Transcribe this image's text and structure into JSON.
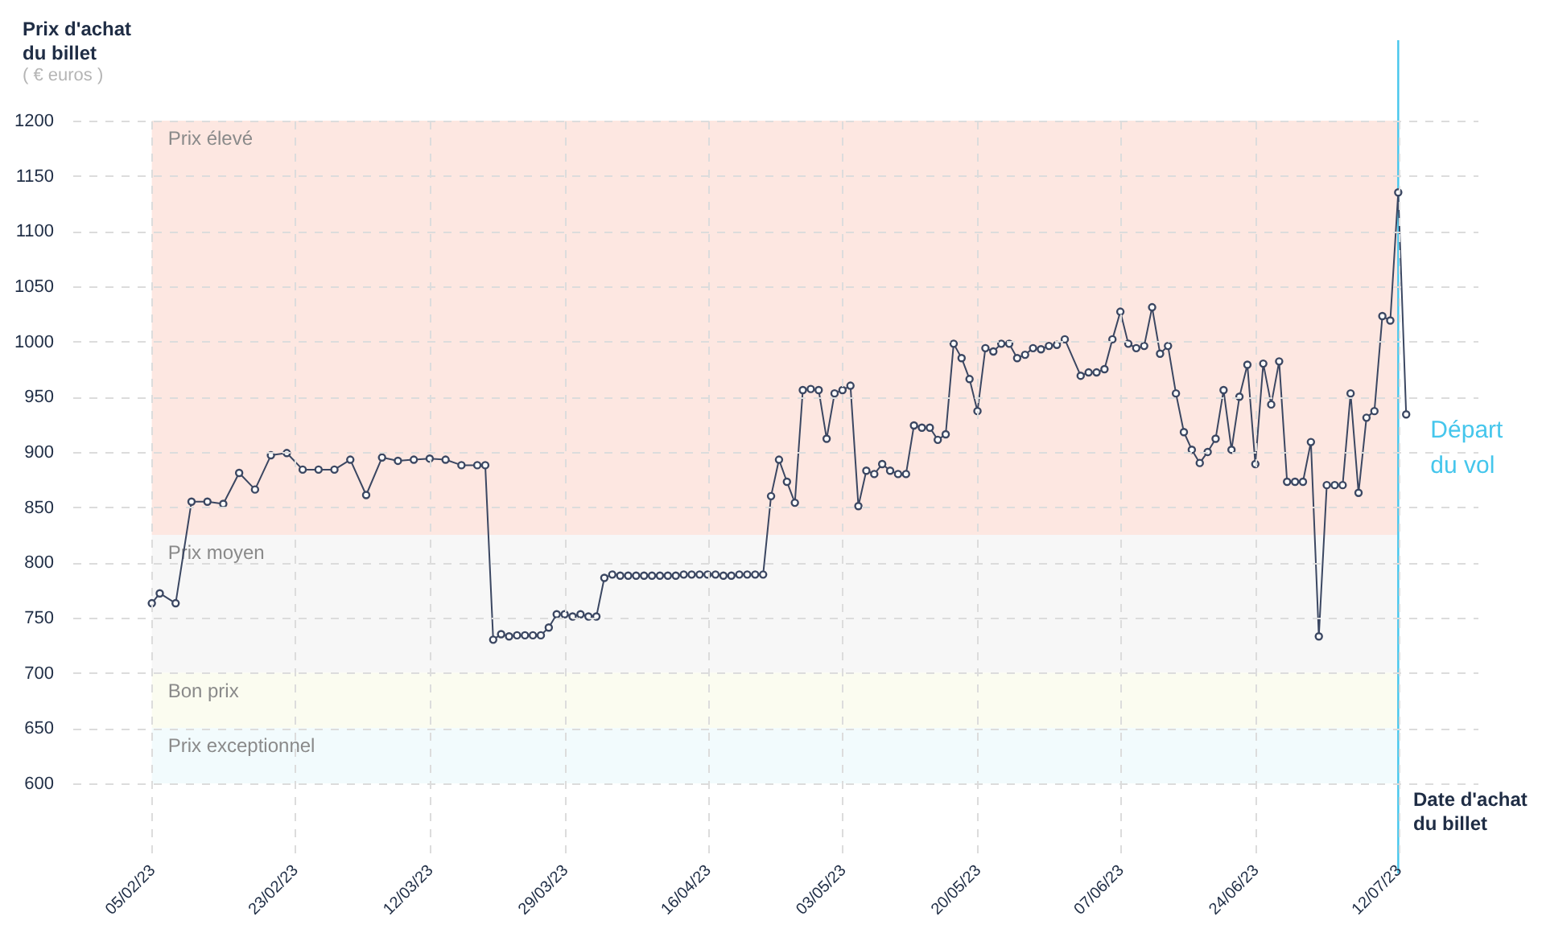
{
  "chart_data": {
    "type": "line",
    "ylabel": "Prix d'achat du billet",
    "xlabel": "Date d'achat du billet",
    "annotations": [
      "( € euros )"
    ],
    "x": [
      "2023-02-05",
      "2023-02-06",
      "2023-02-08",
      "2023-02-10",
      "2023-02-12",
      "2023-02-14",
      "2023-02-16",
      "2023-02-18",
      "2023-02-20",
      "2023-02-22",
      "2023-02-24",
      "2023-02-26",
      "2023-02-28",
      "2023-03-02",
      "2023-03-04",
      "2023-03-06",
      "2023-03-08",
      "2023-03-10",
      "2023-03-12",
      "2023-03-14",
      "2023-03-16",
      "2023-03-18",
      "2023-03-19",
      "2023-03-20",
      "2023-03-21",
      "2023-03-22",
      "2023-03-23",
      "2023-03-24",
      "2023-03-25",
      "2023-03-26",
      "2023-03-27",
      "2023-03-28",
      "2023-03-29",
      "2023-03-30",
      "2023-03-31",
      "2023-04-01",
      "2023-04-02",
      "2023-04-03",
      "2023-04-04",
      "2023-04-05",
      "2023-04-06",
      "2023-04-07",
      "2023-04-08",
      "2023-04-09",
      "2023-04-10",
      "2023-04-11",
      "2023-04-12",
      "2023-04-13",
      "2023-04-14",
      "2023-04-15",
      "2023-04-16",
      "2023-04-17",
      "2023-04-18",
      "2023-04-19",
      "2023-04-20",
      "2023-04-21",
      "2023-04-22",
      "2023-04-23",
      "2023-04-24",
      "2023-04-25",
      "2023-04-26",
      "2023-04-27",
      "2023-04-28",
      "2023-04-29",
      "2023-04-30",
      "2023-05-01",
      "2023-05-02",
      "2023-05-03",
      "2023-05-04",
      "2023-05-05",
      "2023-05-06",
      "2023-05-07",
      "2023-05-08",
      "2023-05-09",
      "2023-05-10",
      "2023-05-11",
      "2023-05-12",
      "2023-05-13",
      "2023-05-14",
      "2023-05-15",
      "2023-05-16",
      "2023-05-17",
      "2023-05-18",
      "2023-05-19",
      "2023-05-20",
      "2023-05-21",
      "2023-05-22",
      "2023-05-23",
      "2023-05-24",
      "2023-05-25",
      "2023-05-26",
      "2023-05-27",
      "2023-05-28",
      "2023-05-29",
      "2023-05-30",
      "2023-05-31",
      "2023-06-02",
      "2023-06-03",
      "2023-06-04",
      "2023-06-05",
      "2023-06-06",
      "2023-06-07",
      "2023-06-08",
      "2023-06-09",
      "2023-06-10",
      "2023-06-11",
      "2023-06-12",
      "2023-06-13",
      "2023-06-14",
      "2023-06-15",
      "2023-06-16",
      "2023-06-17",
      "2023-06-18",
      "2023-06-19",
      "2023-06-20",
      "2023-06-21",
      "2023-06-22",
      "2023-06-23",
      "2023-06-24",
      "2023-06-25",
      "2023-06-26",
      "2023-06-27",
      "2023-06-28",
      "2023-06-29",
      "2023-06-30",
      "2023-07-01",
      "2023-07-02",
      "2023-07-03",
      "2023-07-04",
      "2023-07-05",
      "2023-07-06",
      "2023-07-07",
      "2023-07-08",
      "2023-07-09",
      "2023-07-10",
      "2023-07-11",
      "2023-07-12",
      "2023-07-13"
    ],
    "series": [
      {
        "color": "#3b4762",
        "values": [
          763,
          772,
          763,
          855,
          855,
          853,
          881,
          866,
          897,
          899,
          884,
          884,
          884,
          893,
          861,
          895,
          892,
          893,
          894,
          893,
          888,
          888,
          888,
          730,
          735,
          733,
          734,
          734,
          734,
          734,
          741,
          753,
          753,
          751,
          753,
          751,
          751,
          786,
          789,
          788,
          788,
          788,
          788,
          788,
          788,
          788,
          788,
          789,
          789,
          789,
          789,
          789,
          788,
          788,
          789,
          789,
          789,
          789,
          860,
          893,
          873,
          854,
          956,
          957,
          956,
          912,
          953,
          956,
          960,
          851,
          883,
          880,
          889,
          883,
          880,
          880,
          924,
          922,
          922,
          911,
          916,
          998,
          985,
          966,
          937,
          994,
          991,
          998,
          998,
          985,
          988,
          994,
          993,
          996,
          997,
          1002,
          969,
          972,
          972,
          975,
          1002,
          1027,
          998,
          994,
          996,
          1031,
          989,
          996,
          953,
          918,
          902,
          890,
          900,
          912,
          956,
          902,
          950,
          979,
          889,
          980,
          943,
          982,
          873,
          873,
          873,
          909,
          733,
          870,
          870,
          870,
          953,
          863,
          931,
          937,
          1023,
          1019,
          1135,
          934
        ]
      }
    ],
    "xlim": [
      "2023-01-26",
      "2023-07-22"
    ],
    "xticks": [
      {
        "value": "2023-02-05",
        "label": "05/02/23"
      },
      {
        "value": "2023-02-23",
        "label": "23/02/23"
      },
      {
        "value": "2023-03-12",
        "label": "12/03/23"
      },
      {
        "value": "2023-03-29",
        "label": "29/03/23"
      },
      {
        "value": "2023-04-16",
        "label": "16/04/23"
      },
      {
        "value": "2023-05-03",
        "label": "03/05/23"
      },
      {
        "value": "2023-05-20",
        "label": "20/05/23"
      },
      {
        "value": "2023-06-07",
        "label": "07/06/23"
      },
      {
        "value": "2023-06-24",
        "label": "24/06/23"
      },
      {
        "value": "2023-07-12",
        "label": "12/07/23"
      }
    ],
    "ylim": [
      530,
      1200
    ],
    "yticks": [
      600,
      650,
      700,
      750,
      800,
      850,
      900,
      950,
      1000,
      1050,
      1100,
      1150,
      1200
    ],
    "grid": true,
    "marker": "circle",
    "line_style": "solid",
    "bands": [
      {
        "axis": "y",
        "from": 825,
        "to": 1200,
        "label": "Prix élevé",
        "color": "#fde7e1"
      },
      {
        "axis": "y",
        "from": 700,
        "to": 825,
        "label": "Prix moyen",
        "color": "#f7f7f7"
      },
      {
        "axis": "y",
        "from": 650,
        "to": 700,
        "label": "Bon prix",
        "color": "#fbfcf0"
      },
      {
        "axis": "y",
        "from": 600,
        "to": 650,
        "label": "Prix exceptionnel",
        "color": "#f2fbfd"
      }
    ],
    "ref_lines": [
      {
        "axis": "x",
        "value": "2023-07-12",
        "label": "Départ du vol",
        "color": "#45c6ec"
      }
    ]
  }
}
